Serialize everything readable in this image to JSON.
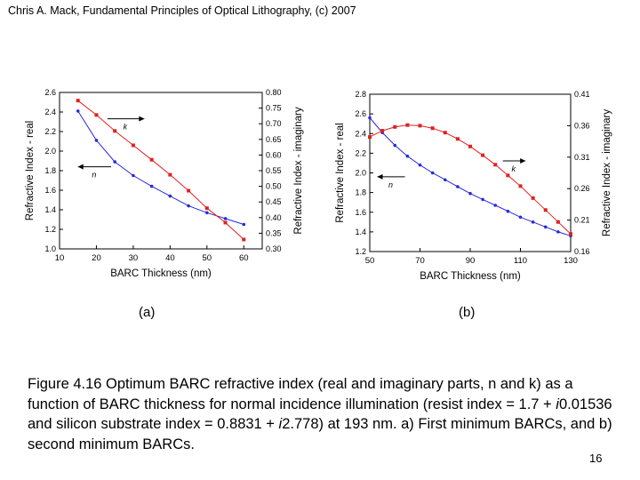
{
  "header": "Chris A. Mack, Fundamental Principles of Optical Lithography, (c) 2007",
  "chart_data": [
    {
      "type": "line",
      "panel_label": "(a)",
      "xlabel": "BARC Thickness (nm)",
      "ylabel": "Refractive Index - real",
      "y2label": "Refractive Index - imaginary",
      "xlim": [
        10,
        65
      ],
      "ylim": [
        1.0,
        2.6
      ],
      "y2lim": [
        0.3,
        0.8
      ],
      "xticks": [
        "10",
        "20",
        "30",
        "40",
        "50",
        "60"
      ],
      "yticks": [
        "1.0",
        "1.2",
        "1.4",
        "1.6",
        "1.8",
        "2.0",
        "2.2",
        "2.4",
        "2.6"
      ],
      "y2ticks": [
        "0.30",
        "0.35",
        "0.40",
        "0.45",
        "0.50",
        "0.55",
        "0.60",
        "0.65",
        "0.70",
        "0.75",
        "0.80"
      ],
      "series": [
        {
          "name": "n",
          "axis": "left",
          "color": "#2a2ad8",
          "x": [
            15,
            20,
            25,
            30,
            35,
            40,
            45,
            50,
            55,
            60
          ],
          "values": [
            2.41,
            2.11,
            1.89,
            1.75,
            1.64,
            1.54,
            1.44,
            1.37,
            1.31,
            1.25
          ]
        },
        {
          "name": "k",
          "axis": "right",
          "color": "#e02020",
          "x": [
            15,
            20,
            25,
            30,
            35,
            40,
            45,
            50,
            55,
            60
          ],
          "values": [
            0.774,
            0.728,
            0.677,
            0.631,
            0.585,
            0.537,
            0.486,
            0.43,
            0.384,
            0.33
          ]
        }
      ],
      "annotations": [
        {
          "text": "k",
          "series": "k",
          "at": [
            23,
            0.716
          ],
          "arrow_to": [
            33,
            0.716
          ]
        },
        {
          "text": "n",
          "series": "n",
          "at": [
            24,
            1.84
          ],
          "arrow_to": [
            15,
            1.84
          ]
        }
      ]
    },
    {
      "type": "line",
      "panel_label": "(b)",
      "xlabel": "BARC Thickness (nm)",
      "ylabel": "Refractive Index - real",
      "y2label": "Refractive Index - imaginary",
      "xlim": [
        50,
        130
      ],
      "ylim": [
        1.2,
        2.8
      ],
      "y2lim": [
        0.16,
        0.41
      ],
      "xticks": [
        "50",
        "70",
        "90",
        "110",
        "130"
      ],
      "yticks": [
        "1.2",
        "1.4",
        "1.6",
        "1.8",
        "2.0",
        "2.2",
        "2.4",
        "2.6",
        "2.8"
      ],
      "y2ticks": [
        "0.16",
        "0.21",
        "0.26",
        "0.31",
        "0.36",
        "0.41"
      ],
      "series": [
        {
          "name": "n",
          "axis": "left",
          "color": "#2a2ad8",
          "x": [
            50,
            55,
            60,
            65,
            70,
            75,
            80,
            85,
            90,
            95,
            100,
            105,
            110,
            115,
            120,
            125,
            130
          ],
          "values": [
            2.56,
            2.41,
            2.28,
            2.17,
            2.08,
            2.0,
            1.93,
            1.86,
            1.79,
            1.73,
            1.67,
            1.61,
            1.55,
            1.5,
            1.45,
            1.4,
            1.36
          ]
        },
        {
          "name": "k",
          "axis": "right",
          "color": "#e02020",
          "x": [
            50,
            55,
            60,
            65,
            70,
            75,
            80,
            85,
            90,
            95,
            100,
            105,
            110,
            115,
            120,
            125,
            130
          ],
          "values": [
            0.342,
            0.352,
            0.358,
            0.361,
            0.36,
            0.356,
            0.349,
            0.339,
            0.327,
            0.313,
            0.298,
            0.281,
            0.264,
            0.245,
            0.226,
            0.207,
            0.188
          ]
        }
      ],
      "annotations": [
        {
          "text": "k",
          "series": "k",
          "at": [
            103,
            0.304
          ],
          "arrow_to": [
            112,
            0.304
          ]
        },
        {
          "text": "n",
          "series": "n",
          "at": [
            64,
            1.96
          ],
          "arrow_to": [
            53,
            1.96
          ]
        }
      ]
    }
  ],
  "caption": {
    "t1": "Figure 4.16  Optimum BARC refractive index (real and imaginary parts, n and k) as a function of BARC thickness for normal incidence illumination (resist index = 1.7 + ",
    "i1": "i",
    "t2": "0.01536 and silicon substrate index = 0.8831 + ",
    "i2": "i",
    "t3": "2.778) at 193 nm.  a) First minimum BARCs, and b) second minimum BARCs."
  },
  "page_number": "16"
}
